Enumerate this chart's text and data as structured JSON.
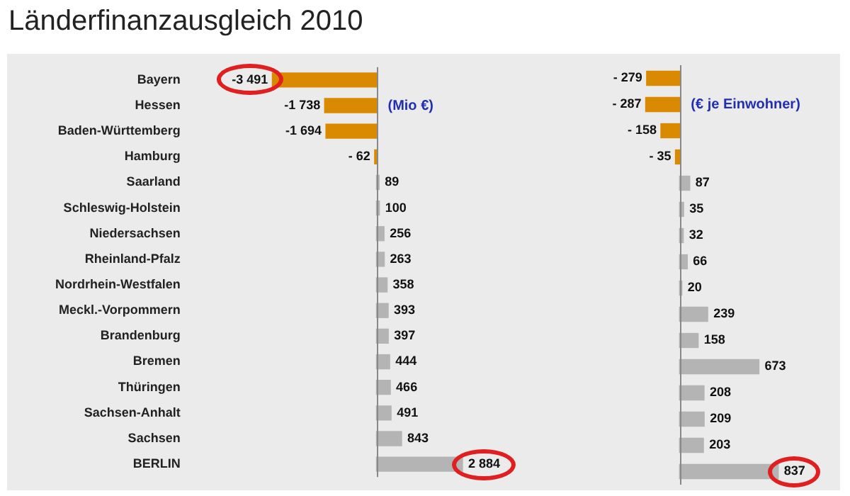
{
  "chart_data": [
    {
      "type": "bar",
      "title": "Länderfinanzausgleich 2010",
      "orientation": "horizontal",
      "tick_labels": "y",
      "legend": false,
      "data_labels": true,
      "categories": [
        "Bayern",
        "Hessen",
        "Baden-Württemberg",
        "Hamburg",
        "Saarland",
        "Schleswig-Holstein",
        "Niedersachsen",
        "Rheinland-Pfalz",
        "Nordrhein-Westfalen",
        "Meckl.-Vorpommern",
        "Brandenburg",
        "Bremen",
        "Thüringen",
        "Sachsen-Anhalt",
        "Sachsen",
        "BERLIN"
      ],
      "values": [
        -3491,
        -1738,
        -1694,
        -62,
        89,
        100,
        256,
        263,
        358,
        393,
        397,
        444,
        466,
        491,
        843,
        2884
      ],
      "value_labels": [
        "-3 491",
        "-1 738",
        "-1 694",
        "- 62",
        "89",
        "100",
        "256",
        "263",
        "358",
        "393",
        "397",
        "444",
        "466",
        "491",
        "843",
        "2 884"
      ],
      "colors": [
        "#d98a00",
        "#d98a00",
        "#d98a00",
        "#d98a00",
        "#b4b4b4",
        "#b4b4b4",
        "#b4b4b4",
        "#b4b4b4",
        "#b4b4b4",
        "#b4b4b4",
        "#b4b4b4",
        "#b4b4b4",
        "#b4b4b4",
        "#b4b4b4",
        "#b4b4b4",
        "#b4b4b4"
      ],
      "annotations": [
        "(Mio €)"
      ]
    },
    {
      "type": "bar",
      "orientation": "horizontal",
      "tick_labels": false,
      "legend": false,
      "data_labels": true,
      "categories": [
        null,
        null,
        null,
        null,
        null,
        null,
        null,
        null,
        null,
        null,
        null,
        null,
        null,
        null,
        null,
        null
      ],
      "values": [
        -279,
        -287,
        -158,
        -35,
        87,
        35,
        32,
        66,
        20,
        239,
        158,
        673,
        208,
        209,
        203,
        837
      ],
      "value_labels": [
        "- 279",
        "- 287",
        "- 158",
        "- 35",
        "87",
        "35",
        "32",
        "66",
        "20",
        "239",
        "158",
        "673",
        "208",
        "209",
        "203",
        "837"
      ],
      "colors": [
        "#d98a00",
        "#d98a00",
        "#d98a00",
        "#d98a00",
        "#b4b4b4",
        "#b4b4b4",
        "#b4b4b4",
        "#b4b4b4",
        "#b4b4b4",
        "#b4b4b4",
        "#b4b4b4",
        "#b4b4b4",
        "#b4b4b4",
        "#b4b4b4",
        "#b4b4b4",
        "#b4b4b4"
      ],
      "annotations": [
        "(€ je Einwohner)"
      ]
    }
  ]
}
